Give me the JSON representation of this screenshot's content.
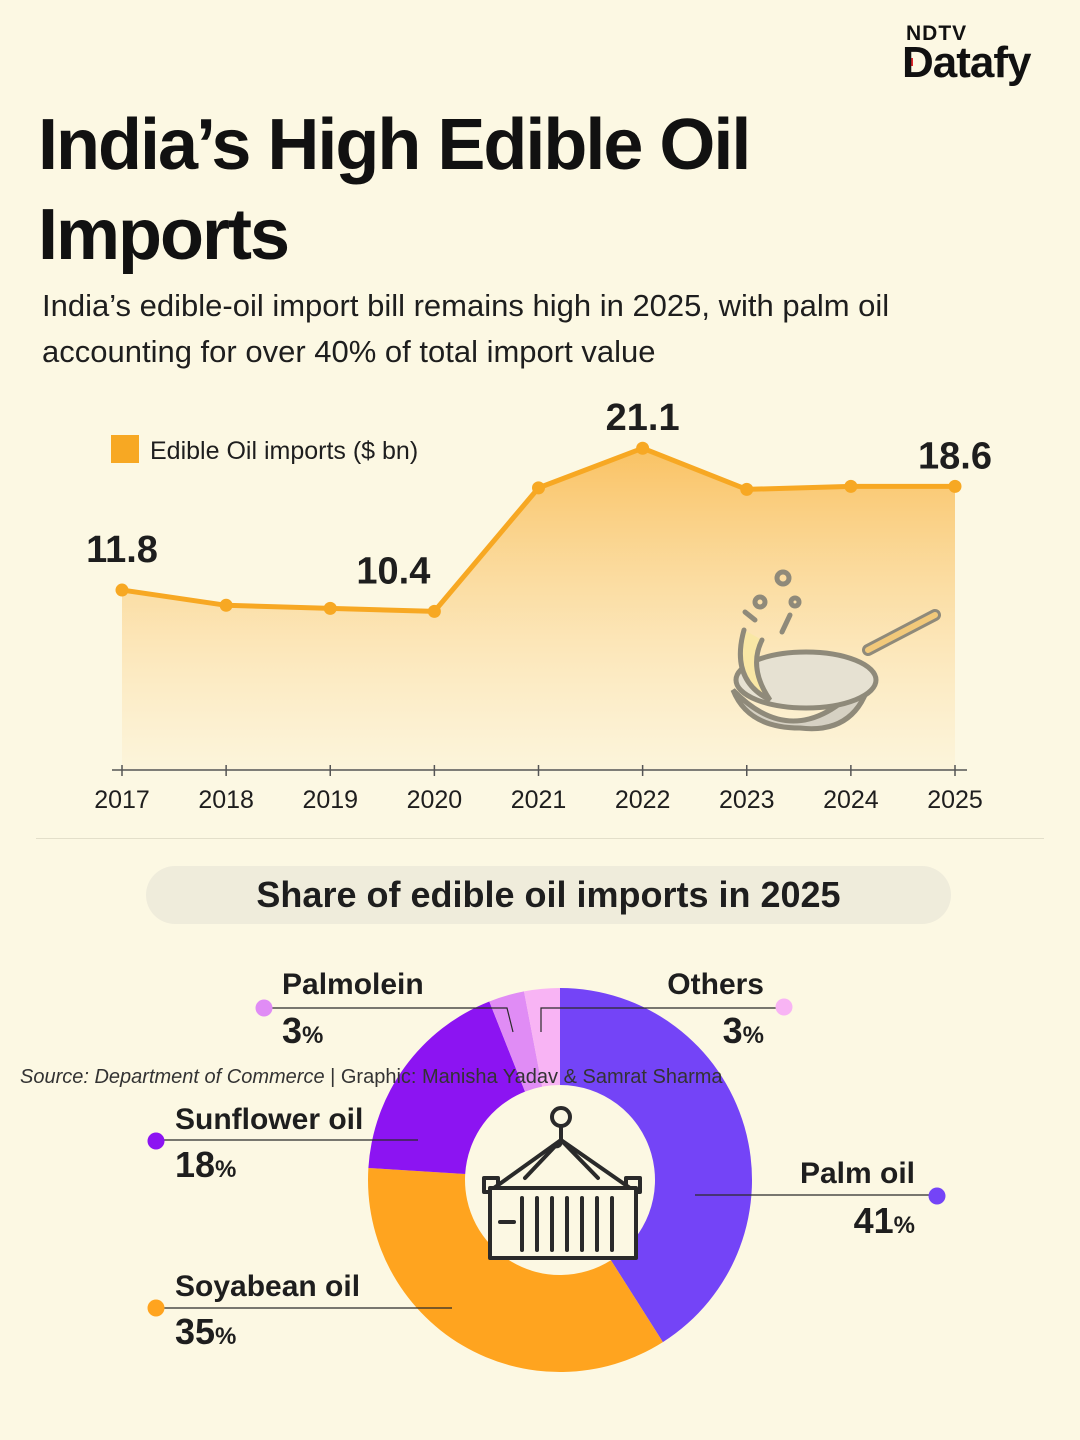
{
  "brand": {
    "top": "NDTV",
    "main": "Datafy"
  },
  "title": "India’s High Edible Oil Imports",
  "subtitle": "India’s edible-oil import bill remains high in 2025, with palm oil accounting for over 40% of total import value",
  "colors": {
    "background": "#fcf8e3",
    "line": "#f7a823",
    "area_top": "#f9bf5c",
    "palm_oil": "#7444f7",
    "soyabean_oil": "#ffa41f",
    "sunflower_oil": "#8c14f2",
    "palmolein": "#e08cf5",
    "others": "#f8b4f4"
  },
  "chart_data": [
    {
      "type": "area",
      "legend": "Edible Oil imports ($ bn)",
      "x": [
        "2017",
        "2018",
        "2019",
        "2020",
        "2021",
        "2022",
        "2023",
        "2024",
        "2025"
      ],
      "series": [
        {
          "name": "Edible Oil imports ($ bn)",
          "values": [
            11.8,
            10.8,
            10.6,
            10.4,
            18.5,
            21.1,
            18.4,
            18.6,
            18.6
          ]
        }
      ],
      "labels": [
        {
          "x": "2017",
          "text": "11.8"
        },
        {
          "x": "2020",
          "text": "10.4"
        },
        {
          "x": "2022",
          "text": "21.1"
        },
        {
          "x": "2025",
          "text": "18.6"
        }
      ],
      "grid": false
    },
    {
      "type": "pie",
      "title": "Share of edible oil imports in 2025",
      "slices": [
        {
          "name": "Palm oil",
          "value": 41,
          "label": "41"
        },
        {
          "name": "Soyabean oil",
          "value": 35,
          "label": "35"
        },
        {
          "name": "Sunflower oil",
          "value": 18,
          "label": "18"
        },
        {
          "name": "Palmolein",
          "value": 3,
          "label": "3"
        },
        {
          "name": "Others",
          "value": 3,
          "label": "3"
        }
      ],
      "unit": "%"
    }
  ],
  "footer": {
    "source": "Source: Department of Commerce",
    "credit": " | Graphic: Manisha Yadav & Samrat Sharma"
  }
}
